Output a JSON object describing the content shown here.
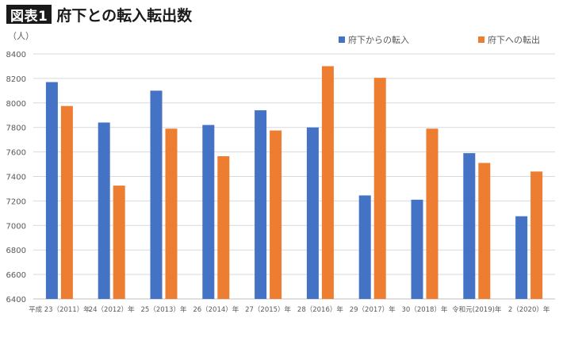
{
  "header": {
    "badge": "図表1",
    "title": "府下との転入転出数"
  },
  "chart_data": {
    "type": "bar",
    "unit_label": "（人）",
    "categories": [
      "平成 23（2011）年",
      "24（2012）年",
      "25（2013）年",
      "26（2014）年",
      "27（2015）年",
      "28（2016）年",
      "29（2017）年",
      "30（2018）年",
      "令和元(2019)年",
      "2（2020）年"
    ],
    "series": [
      {
        "name": "府下からの転入",
        "color": "#4472c4",
        "values": [
          8170,
          7840,
          8100,
          7820,
          7940,
          7800,
          7245,
          7210,
          7590,
          7075
        ]
      },
      {
        "name": "府下への転出",
        "color": "#ed7d31",
        "values": [
          7975,
          7325,
          7790,
          7565,
          7775,
          8300,
          8205,
          7790,
          7510,
          7440
        ]
      }
    ],
    "ylim": [
      6400,
      8400
    ],
    "yticks": [
      "6400",
      "6600",
      "6800",
      "7000",
      "7200",
      "7400",
      "7600",
      "7800",
      "8000",
      "8200",
      "8400"
    ],
    "grid": true,
    "legend": "top-right"
  }
}
